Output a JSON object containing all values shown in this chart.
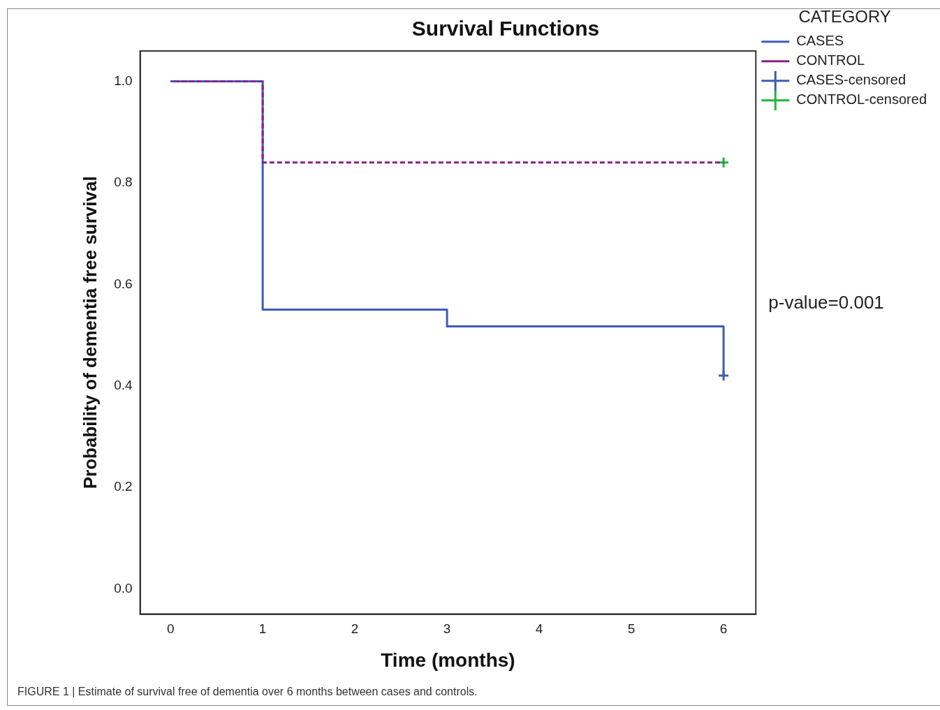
{
  "chart_data": {
    "type": "step",
    "title": "Survival Functions",
    "xlabel": "Time (months)",
    "ylabel": "Probability of dementia free survival",
    "legend_title": "CATEGORY",
    "legend": "top right",
    "grid": false,
    "xlim": [
      -0.33,
      6.35
    ],
    "xticks": [
      0,
      1,
      2,
      3,
      4,
      5,
      6
    ],
    "ylim": [
      -0.05,
      1.06
    ],
    "yticks": [
      {
        "value": 0,
        "label": "0.0"
      },
      {
        "value": 0.2,
        "label": "0.2"
      },
      {
        "value": 0.4,
        "label": "0.4"
      },
      {
        "value": 0.6,
        "label": "0.6"
      },
      {
        "value": 0.8,
        "label": "0.8"
      },
      {
        "value": 1,
        "label": "1.0"
      }
    ],
    "series": [
      {
        "name": "CASES",
        "color": "#3b5cb8",
        "line_style": "solid",
        "marker": "none",
        "x": [
          0,
          1,
          3,
          6
        ],
        "values": [
          1.0,
          0.55,
          0.517,
          0.42
        ]
      },
      {
        "name": "CONTROL",
        "color": "#8b1f86",
        "line_style": "dashed",
        "marker": "none",
        "x": [
          0,
          1,
          6
        ],
        "values": [
          1.0,
          0.84,
          0.84
        ]
      },
      {
        "name": "CASES-censored",
        "type": "scatter",
        "color": "#3b5cb8",
        "marker": "cross",
        "x": [
          6
        ],
        "values": [
          0.42
        ]
      },
      {
        "name": "CONTROL-censored",
        "type": "scatter",
        "color": "#22b43c",
        "marker": "cross",
        "x": [
          6
        ],
        "values": [
          0.84
        ]
      }
    ],
    "annotations": [
      "p-value=0.001",
      "FIGURE 1 | Estimate of survival free of dementia over 6 months between cases and controls."
    ]
  }
}
